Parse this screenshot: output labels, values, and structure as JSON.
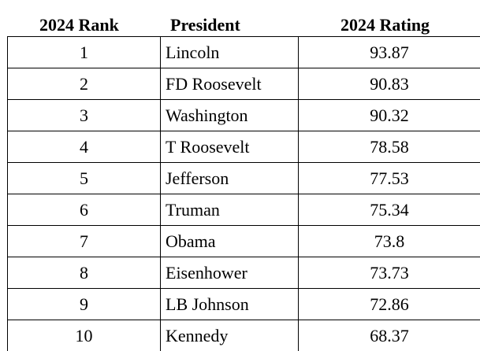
{
  "table": {
    "headers": {
      "rank": "2024 Rank",
      "president": "President",
      "rating": "2024 Rating"
    },
    "rows": [
      {
        "rank": "1",
        "president": "Lincoln",
        "rating": "93.87"
      },
      {
        "rank": "2",
        "president": "FD Roosevelt",
        "rating": "90.83"
      },
      {
        "rank": "3",
        "president": "Washington",
        "rating": "90.32"
      },
      {
        "rank": "4",
        "president": "T Roosevelt",
        "rating": "78.58"
      },
      {
        "rank": "5",
        "president": "Jefferson",
        "rating": "77.53"
      },
      {
        "rank": "6",
        "president": "Truman",
        "rating": "75.34"
      },
      {
        "rank": "7",
        "president": "Obama",
        "rating": "73.8"
      },
      {
        "rank": "8",
        "president": "Eisenhower",
        "rating": "73.73"
      },
      {
        "rank": "9",
        "president": "LB Johnson",
        "rating": "72.86"
      },
      {
        "rank": "10",
        "president": "Kennedy",
        "rating": "68.37"
      }
    ]
  }
}
